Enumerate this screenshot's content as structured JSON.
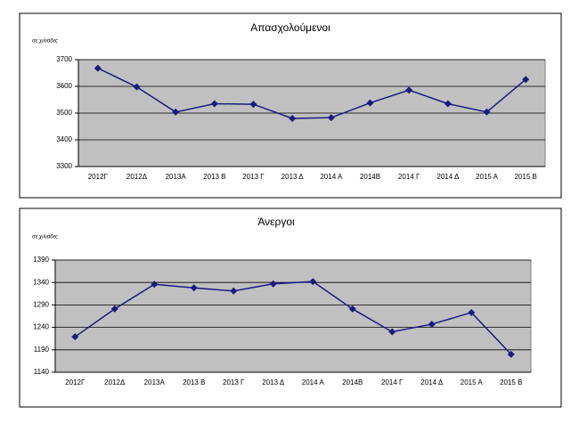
{
  "chart_data": [
    {
      "type": "line",
      "title": "Απασχολούμενοι",
      "subtitle": "σε χιλιάδες",
      "categories": [
        "2012Γ",
        "2012Δ",
        "2013Α",
        "2013 Β",
        "2013 Γ",
        "2013 Δ",
        "2014 Α",
        "2014Β",
        "2014 Γ",
        "2014 Δ",
        "2015 Α",
        "2015 Β"
      ],
      "series": [
        {
          "color": "#1a1a80",
          "values": [
            3668,
            3598,
            3504,
            3535,
            3533,
            3480,
            3483,
            3538,
            3586,
            3535,
            3504,
            3626
          ]
        }
      ],
      "ylim": [
        3300,
        3700
      ],
      "yticks": [
        3300,
        3400,
        3500,
        3600,
        3700
      ],
      "grid": true
    },
    {
      "type": "line",
      "title": "Άνεργοι",
      "subtitle": "σε χιλιάδες",
      "categories": [
        "2012Γ",
        "2012Δ",
        "2013Α",
        "2013 Β",
        "2013 Γ",
        "2013 Δ",
        "2014 Α",
        "2014Β",
        "2014 Γ",
        "2014 Δ",
        "2015 Α",
        "2015 Β"
      ],
      "series": [
        {
          "color": "#1a1a80",
          "values": [
            1219,
            1281,
            1336,
            1328,
            1321,
            1337,
            1342,
            1281,
            1230,
            1247,
            1273,
            1180
          ]
        }
      ],
      "ylim": [
        1140,
        1390
      ],
      "yticks": [
        1140,
        1190,
        1240,
        1290,
        1340,
        1390
      ],
      "grid": true
    }
  ]
}
